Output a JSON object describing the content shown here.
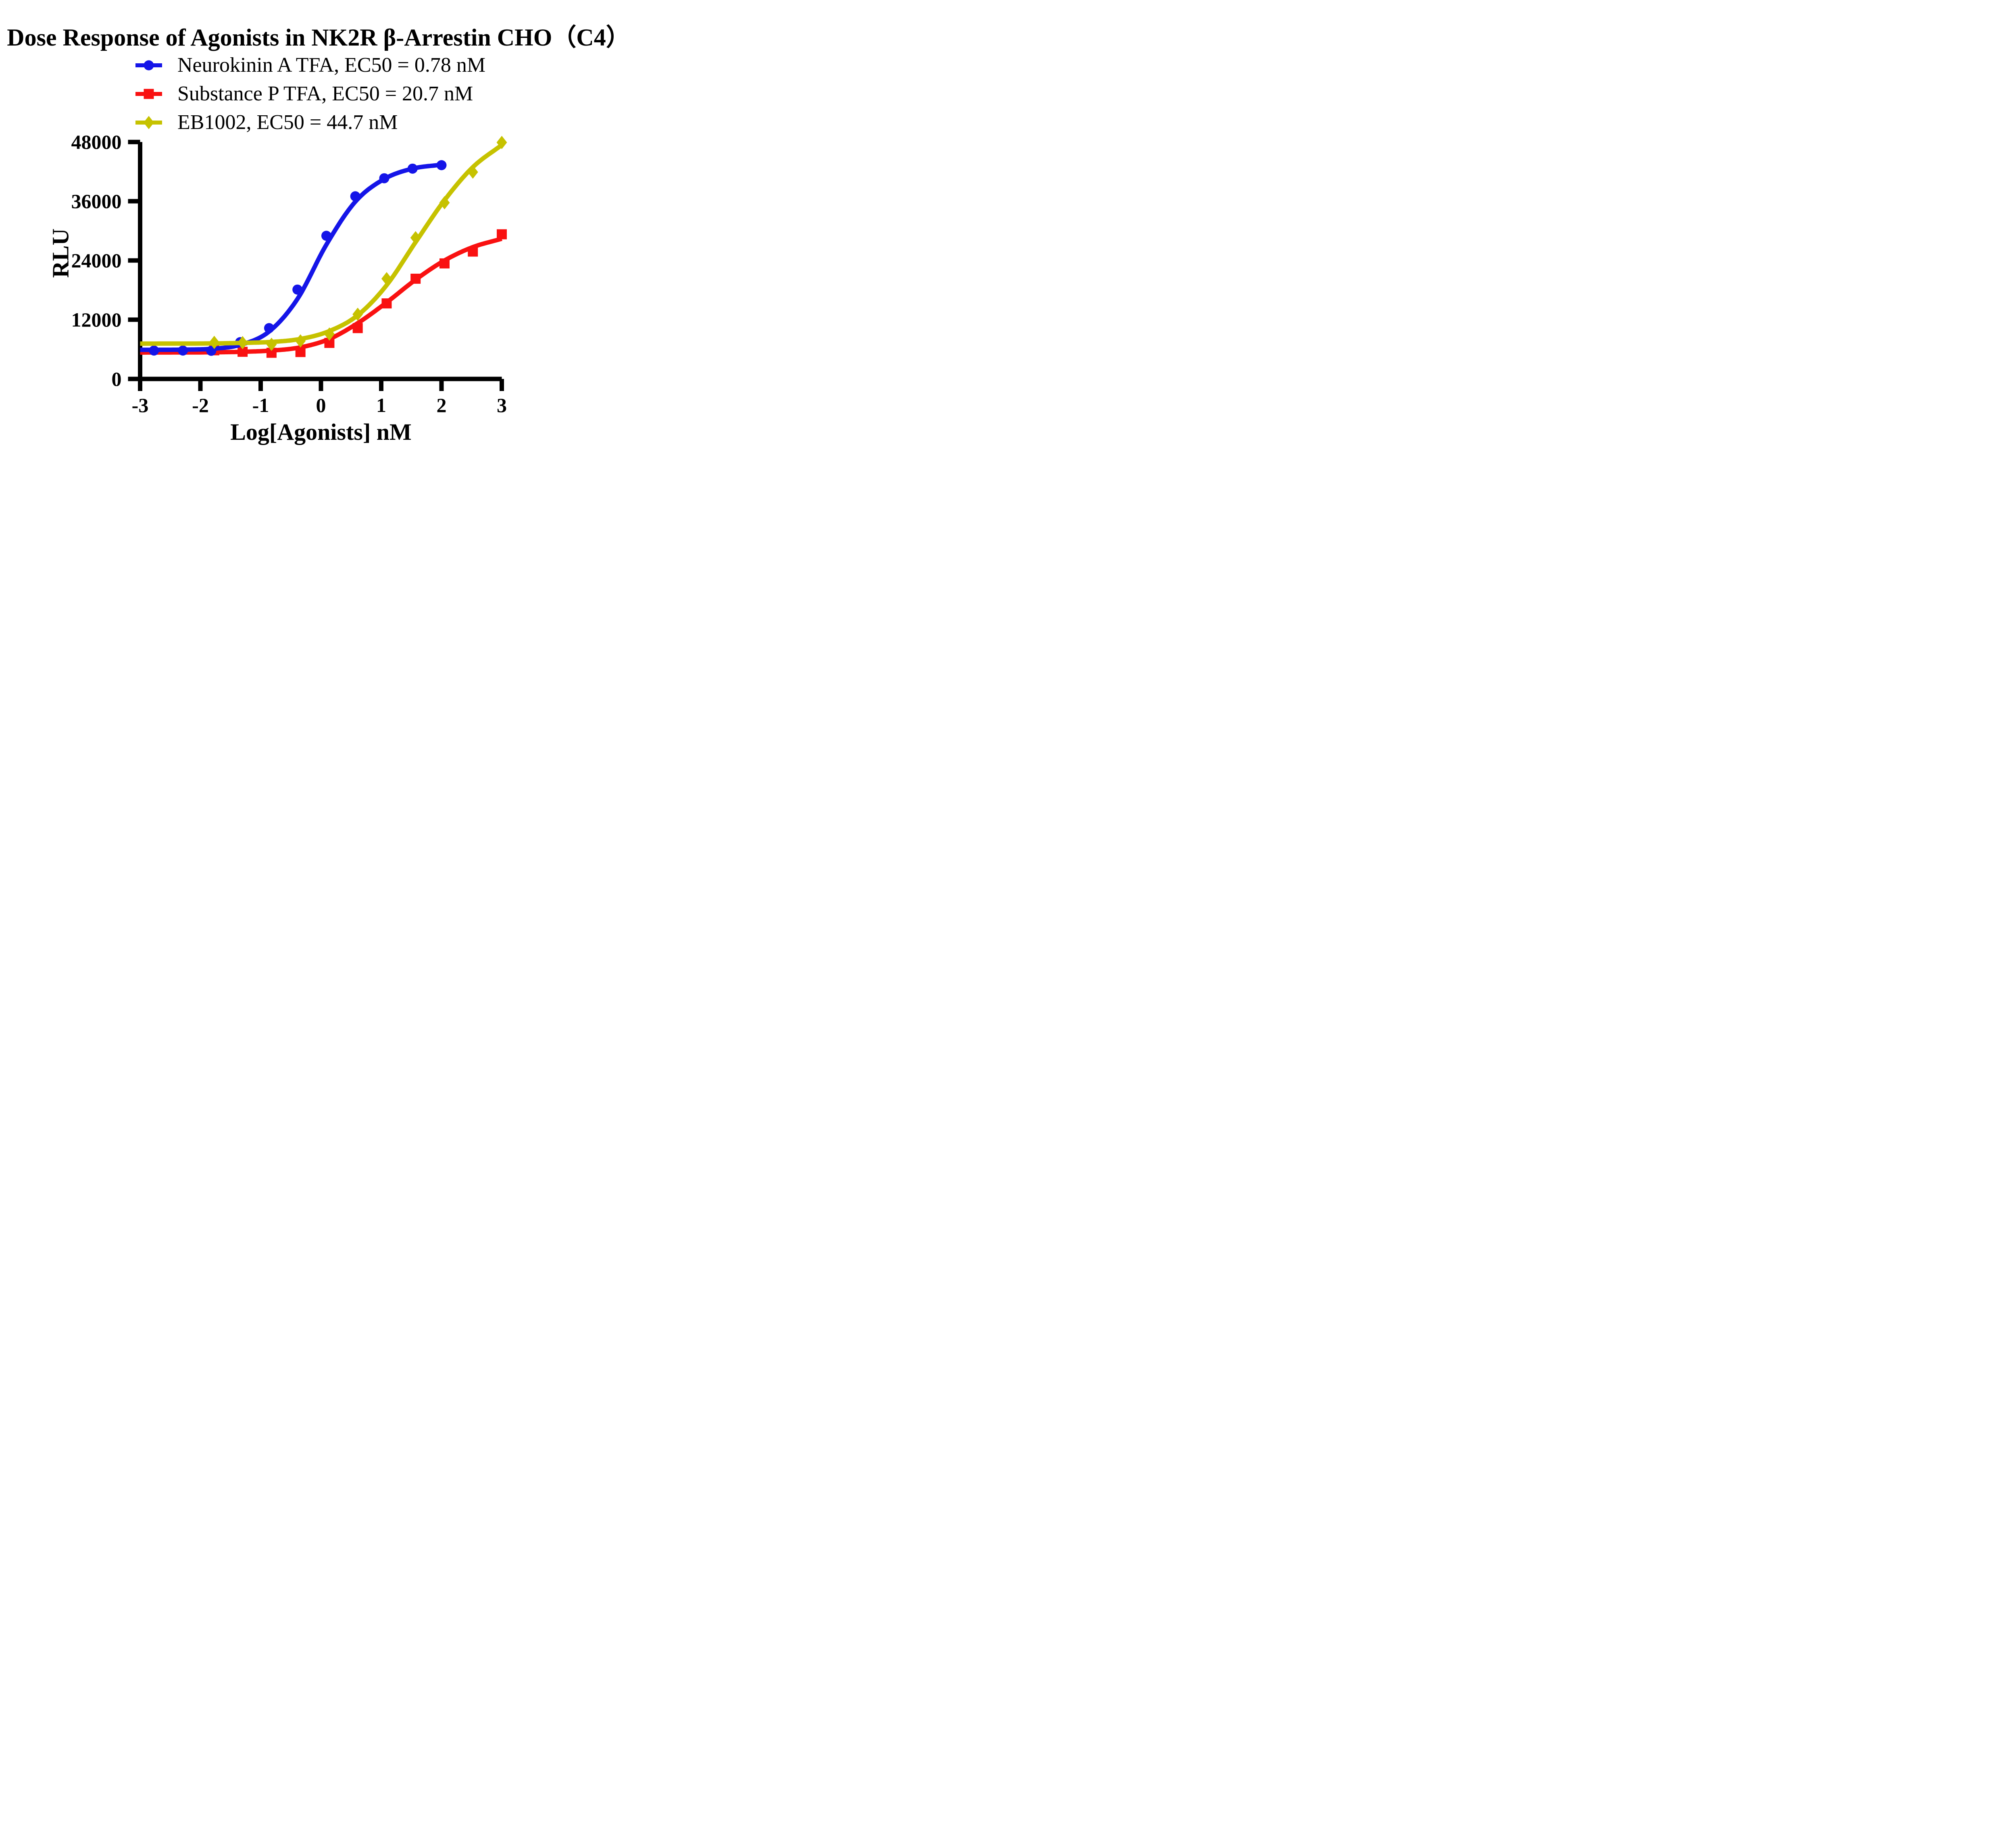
{
  "chart_data": {
    "type": "line",
    "title": "Dose Response of Agonists in NK2R β-Arrestin CHO（C4）",
    "xlabel": "Log[Agonists] nM",
    "ylabel": "RLU",
    "xlim": [
      -3,
      3
    ],
    "ylim": [
      0,
      48000
    ],
    "xticks": [
      "-3",
      "-2",
      "-1",
      "0",
      "1",
      "2",
      "3"
    ],
    "xtick_values": [
      -3,
      -2,
      -1,
      0,
      1,
      2,
      3
    ],
    "yticks": [
      "0",
      "12000",
      "24000",
      "36000",
      "48000"
    ],
    "ytick_values": [
      0,
      12000,
      24000,
      36000,
      48000
    ],
    "grid": false,
    "legend_position": "top-left",
    "background_color": "#ffffff",
    "axis_color": "#000000",
    "draw_order": [
      1,
      0,
      2
    ],
    "series": [
      {
        "name": "Neurokinin A TFA, EC50 = 0.78 nM",
        "ec50_nm": 0.78,
        "color": "#1515e8",
        "marker": "circle",
        "x": [
          -2.77,
          -2.29,
          -1.82,
          -1.34,
          -0.86,
          -0.39,
          0.09,
          0.57,
          1.05,
          1.52,
          2.0
        ],
        "y": [
          5750,
          5750,
          5700,
          7450,
          10300,
          18100,
          29000,
          37000,
          40650,
          42600,
          43300
        ],
        "fit_x": [
          -3,
          -2.77,
          -2.29,
          -1.82,
          -1.34,
          -0.86,
          -0.39,
          0.09,
          0.57,
          1.05,
          1.52,
          2.0
        ],
        "fit_y": [
          5900,
          5905,
          5940,
          6100,
          6900,
          9600,
          16200,
          27200,
          35900,
          40500,
          42600,
          43400
        ]
      },
      {
        "name": "Substance P TFA, EC50 = 20.7 nM",
        "ec50_nm": 20.7,
        "color": "#f91111",
        "marker": "square",
        "x": [
          -1.77,
          -1.3,
          -0.82,
          -0.34,
          0.14,
          0.61,
          1.09,
          1.57,
          2.05,
          2.52,
          3.0
        ],
        "y": [
          5800,
          5500,
          5300,
          5450,
          7300,
          10300,
          15300,
          20300,
          23400,
          25800,
          29300
        ],
        "fit_x": [
          -3,
          -1.77,
          -1.3,
          -0.82,
          -0.34,
          0.14,
          0.61,
          1.09,
          1.57,
          2.05,
          2.52,
          3.0
        ],
        "fit_y": [
          5350,
          5400,
          5500,
          5750,
          6400,
          8100,
          11300,
          15500,
          20100,
          24000,
          26700,
          28400
        ]
      },
      {
        "name": "EB1002, EC50 = 44.7 nM",
        "ec50_nm": 44.7,
        "color": "#c6c200",
        "marker": "diamond",
        "x": [
          -1.77,
          -1.3,
          -0.82,
          -0.34,
          0.14,
          0.61,
          1.09,
          1.57,
          2.05,
          2.52,
          3.0
        ],
        "y": [
          7400,
          7350,
          7000,
          7700,
          9100,
          13100,
          20300,
          28600,
          35700,
          41900,
          47900
        ],
        "fit_x": [
          -3,
          -1.77,
          -1.3,
          -0.82,
          -0.34,
          0.14,
          0.61,
          1.09,
          1.57,
          2.05,
          2.52,
          3.0
        ],
        "fit_y": [
          7150,
          7200,
          7300,
          7500,
          8100,
          9700,
          12900,
          19000,
          27700,
          36200,
          42900,
          47400
        ]
      }
    ]
  }
}
